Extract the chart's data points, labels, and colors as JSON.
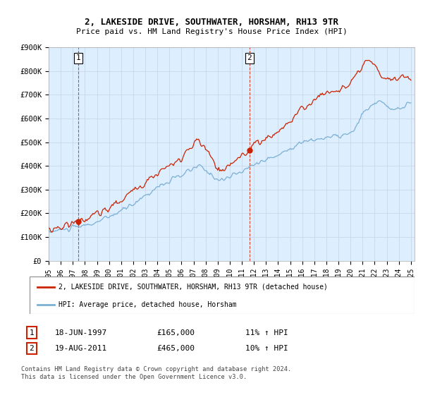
{
  "title": "2, LAKESIDE DRIVE, SOUTHWATER, HORSHAM, RH13 9TR",
  "subtitle": "Price paid vs. HM Land Registry's House Price Index (HPI)",
  "ylim": [
    0,
    900000
  ],
  "yticks": [
    0,
    100000,
    200000,
    300000,
    400000,
    500000,
    600000,
    700000,
    800000,
    900000
  ],
  "ytick_labels": [
    "£0",
    "£100K",
    "£200K",
    "£300K",
    "£400K",
    "£500K",
    "£600K",
    "£700K",
    "£800K",
    "£900K"
  ],
  "hpi_color": "#7bafd4",
  "price_color": "#cc2200",
  "plot_bg_color": "#ddeeff",
  "sale1_year": 1997.46,
  "sale1_price": 165000,
  "sale2_year": 2011.63,
  "sale2_price": 465000,
  "legend_line1": "2, LAKESIDE DRIVE, SOUTHWATER, HORSHAM, RH13 9TR (detached house)",
  "legend_line2": "HPI: Average price, detached house, Horsham",
  "footer": "Contains HM Land Registry data © Crown copyright and database right 2024.\nThis data is licensed under the Open Government Licence v3.0.",
  "background_color": "#ffffff",
  "grid_color": "#c8d8e8"
}
